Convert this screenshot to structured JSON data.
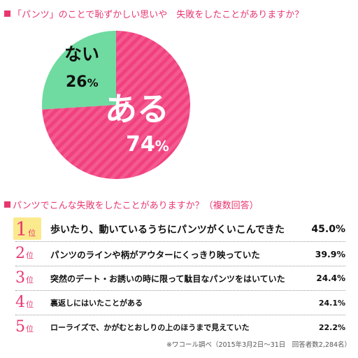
{
  "chart_data": [
    {
      "type": "pie",
      "title": "「パンツ」のことで恥ずかしい思いや　失敗をしたことがありますか？",
      "slices": [
        {
          "label": "ある",
          "value": 74,
          "unit": "%",
          "color": "#f0417e"
        },
        {
          "label": "ない",
          "value": 26,
          "unit": "%",
          "color": "#6fdba0"
        }
      ]
    },
    {
      "type": "table",
      "title": "パンツでこんな失敗をしたことがありますか？（複数回答）",
      "rank_unit": "位",
      "rows": [
        {
          "rank": "1",
          "text": "歩いたり、動いているうちにパンツがくいこんできた",
          "value": "45.0%"
        },
        {
          "rank": "2",
          "text": "パンツのラインや柄がアウターにくっきり映っていた",
          "value": "39.9%"
        },
        {
          "rank": "3",
          "text": "突然のデート・お誘いの時に限って駄目なパンツをはいていた",
          "value": "24.4%"
        },
        {
          "rank": "4",
          "text": "裏返しにはいたことがある",
          "value": "24.1%"
        },
        {
          "rank": "5",
          "text": "ローライズで、かがむとおしりの上のほうまで見えていた",
          "value": "22.2%"
        }
      ]
    }
  ],
  "footnote": "※ワコール調べ（2015年3月2日〜31日　回答者数2,284名）",
  "colors": {
    "accent": "#e8376e",
    "pie_main": "#f0417e",
    "pie_minor": "#6fdba0",
    "badge": "#fbe98d"
  }
}
